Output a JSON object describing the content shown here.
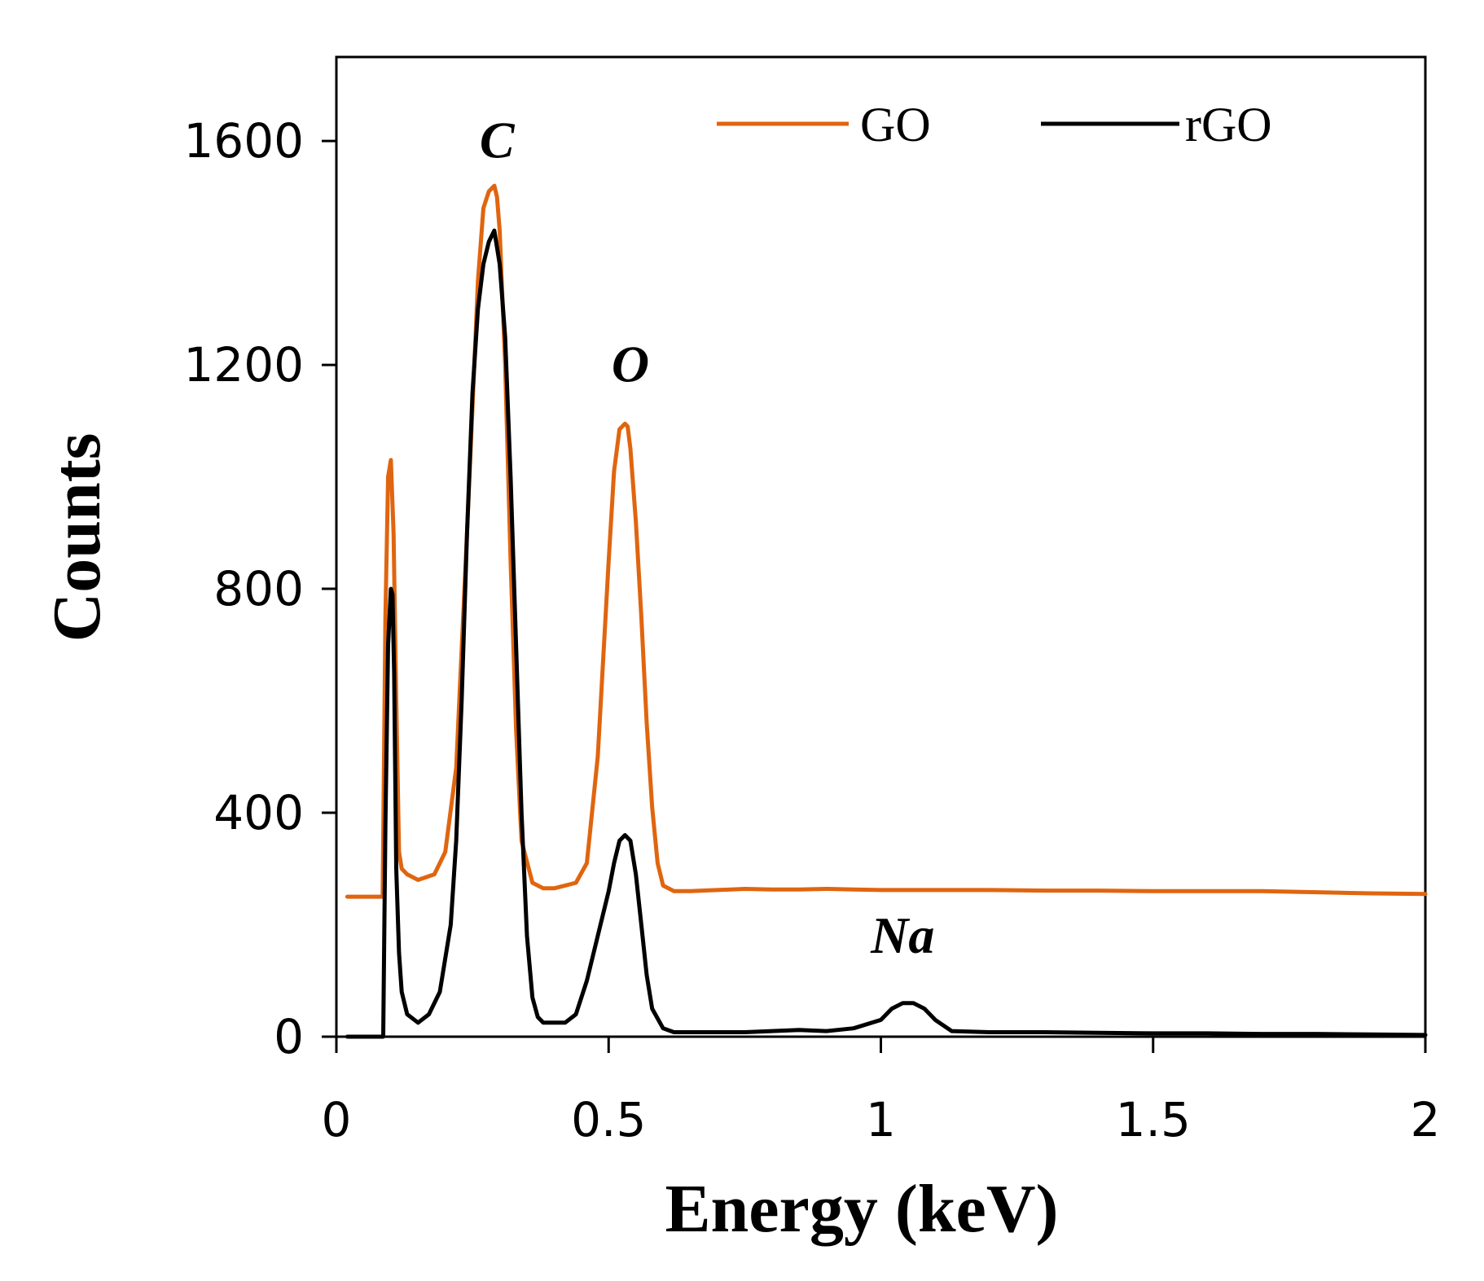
{
  "chart_data": {
    "type": "line",
    "title": "",
    "xlabel": "Energy (keV)",
    "ylabel": "Counts",
    "xlim": [
      0,
      2
    ],
    "ylim": [
      0,
      1750
    ],
    "x_ticks": [
      0,
      0.5,
      1,
      1.5,
      2
    ],
    "x_tick_labels": [
      "0",
      "0.5",
      "1",
      "1.5",
      "2"
    ],
    "y_ticks": [
      0,
      400,
      800,
      1200,
      1600
    ],
    "y_tick_labels": [
      "0",
      "400",
      "800",
      "1200",
      "1600"
    ],
    "grid": false,
    "legend_position": "top-right",
    "series": [
      {
        "name": "GO",
        "color": "#E0650F",
        "x": [
          0.02,
          0.08,
          0.085,
          0.09,
          0.095,
          0.1,
          0.105,
          0.11,
          0.115,
          0.12,
          0.13,
          0.15,
          0.18,
          0.2,
          0.22,
          0.24,
          0.26,
          0.27,
          0.28,
          0.29,
          0.295,
          0.3,
          0.31,
          0.32,
          0.33,
          0.34,
          0.36,
          0.38,
          0.4,
          0.42,
          0.44,
          0.46,
          0.48,
          0.5,
          0.51,
          0.52,
          0.53,
          0.535,
          0.54,
          0.55,
          0.56,
          0.57,
          0.58,
          0.59,
          0.6,
          0.62,
          0.65,
          0.7,
          0.75,
          0.8,
          0.85,
          0.9,
          0.95,
          1.0,
          1.1,
          1.2,
          1.3,
          1.4,
          1.5,
          1.6,
          1.7,
          1.8,
          1.9,
          2.0
        ],
        "values": [
          250,
          250,
          250,
          750,
          1000,
          1030,
          900,
          600,
          330,
          300,
          290,
          280,
          290,
          330,
          480,
          900,
          1350,
          1480,
          1510,
          1520,
          1500,
          1440,
          1200,
          850,
          550,
          350,
          275,
          265,
          265,
          270,
          275,
          310,
          500,
          850,
          1010,
          1085,
          1095,
          1090,
          1050,
          920,
          750,
          560,
          410,
          310,
          270,
          260,
          260,
          262,
          264,
          263,
          263,
          264,
          263,
          262,
          262,
          262,
          261,
          261,
          260,
          260,
          260,
          258,
          256,
          255
        ]
      },
      {
        "name": "rGO",
        "color": "#000000",
        "x": [
          0.02,
          0.08,
          0.083,
          0.086,
          0.09,
          0.095,
          0.1,
          0.103,
          0.106,
          0.11,
          0.115,
          0.12,
          0.13,
          0.15,
          0.17,
          0.19,
          0.21,
          0.22,
          0.23,
          0.24,
          0.25,
          0.26,
          0.27,
          0.28,
          0.29,
          0.3,
          0.31,
          0.32,
          0.33,
          0.34,
          0.35,
          0.36,
          0.37,
          0.38,
          0.4,
          0.42,
          0.44,
          0.46,
          0.48,
          0.5,
          0.51,
          0.52,
          0.53,
          0.54,
          0.55,
          0.56,
          0.57,
          0.58,
          0.6,
          0.62,
          0.65,
          0.7,
          0.75,
          0.8,
          0.85,
          0.9,
          0.95,
          1.0,
          1.02,
          1.04,
          1.06,
          1.08,
          1.1,
          1.13,
          1.2,
          1.3,
          1.4,
          1.5,
          1.6,
          1.7,
          1.8,
          1.9,
          2.0
        ],
        "values": [
          0,
          0,
          0,
          0,
          380,
          700,
          800,
          790,
          650,
          300,
          150,
          80,
          40,
          25,
          40,
          80,
          200,
          350,
          600,
          900,
          1150,
          1300,
          1380,
          1420,
          1440,
          1380,
          1250,
          1000,
          700,
          400,
          180,
          70,
          35,
          25,
          25,
          25,
          40,
          100,
          180,
          260,
          310,
          350,
          360,
          350,
          290,
          200,
          110,
          50,
          15,
          8,
          8,
          8,
          8,
          10,
          12,
          10,
          15,
          30,
          50,
          60,
          60,
          50,
          30,
          10,
          8,
          8,
          7,
          6,
          6,
          5,
          5,
          4,
          3
        ]
      }
    ],
    "annotations": [
      {
        "text": "C",
        "x": 0.295,
        "y": 1570
      },
      {
        "text": "O",
        "x": 0.54,
        "y": 1170
      },
      {
        "text": "Na",
        "x": 1.04,
        "y": 150
      }
    ]
  }
}
